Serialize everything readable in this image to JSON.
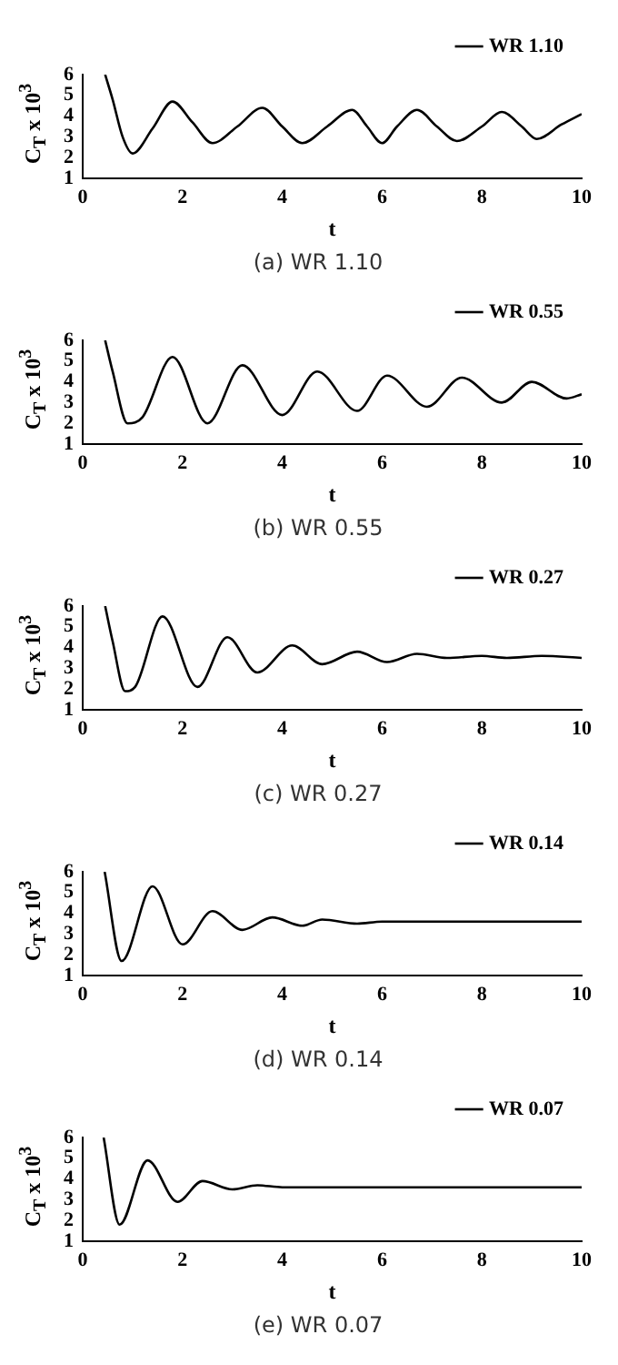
{
  "chart_data": [
    {
      "type": "line",
      "title": "(a) WR 1.10",
      "xlabel": "t",
      "ylabel": "C$_{T}$ x 10$^{3}$",
      "xlim": [
        0,
        10
      ],
      "xticks": [
        0,
        2,
        4,
        6,
        8,
        10
      ],
      "ylim": [
        1,
        6
      ],
      "yticks": [
        1,
        2,
        3,
        4,
        5,
        6
      ],
      "legend": "top right",
      "series": [
        {
          "name": "WR 1.10",
          "color": "#000000",
          "x": [
            0.45,
            0.6,
            0.8,
            1.0,
            1.4,
            1.8,
            2.2,
            2.6,
            3.1,
            3.6,
            4.0,
            4.4,
            4.9,
            5.4,
            5.7,
            6.0,
            6.3,
            6.7,
            7.1,
            7.5,
            8.0,
            8.4,
            8.8,
            9.1,
            9.6,
            10
          ],
          "values": [
            6,
            4.8,
            3.0,
            2.2,
            3.4,
            4.7,
            3.7,
            2.7,
            3.5,
            4.4,
            3.5,
            2.7,
            3.5,
            4.3,
            3.5,
            2.7,
            3.5,
            4.3,
            3.5,
            2.8,
            3.5,
            4.2,
            3.5,
            2.9,
            3.6,
            4.1
          ]
        }
      ]
    },
    {
      "type": "line",
      "title": "(b) WR 0.55",
      "xlabel": "t",
      "ylabel": "C$_{T}$ x 10$^{3}$",
      "xlim": [
        0,
        10
      ],
      "xticks": [
        0,
        2,
        4,
        6,
        8,
        10
      ],
      "ylim": [
        1,
        6
      ],
      "yticks": [
        1,
        2,
        3,
        4,
        5,
        6
      ],
      "legend": "top right",
      "series": [
        {
          "name": "WR 0.55",
          "color": "#000000",
          "x": [
            0.45,
            0.6,
            0.9,
            1.2,
            1.8,
            2.5,
            3.2,
            4.0,
            4.7,
            5.5,
            6.1,
            6.9,
            7.6,
            8.4,
            9.0,
            9.7,
            10
          ],
          "values": [
            6,
            4.5,
            2.0,
            2.3,
            5.2,
            2.0,
            4.8,
            2.4,
            4.5,
            2.6,
            4.3,
            2.8,
            4.2,
            3.0,
            4.0,
            3.2,
            3.4
          ]
        }
      ]
    },
    {
      "type": "line",
      "title": "(c) WR 0.27",
      "xlabel": "t",
      "ylabel": "C$_{T}$ x 10$^{3}$",
      "xlim": [
        0,
        10
      ],
      "xticks": [
        0,
        2,
        4,
        6,
        8,
        10
      ],
      "ylim": [
        1,
        6
      ],
      "yticks": [
        1,
        2,
        3,
        4,
        5,
        6
      ],
      "legend": "top right",
      "series": [
        {
          "name": "WR 0.27",
          "color": "#000000",
          "x": [
            0.45,
            0.6,
            0.85,
            1.05,
            1.6,
            2.3,
            2.9,
            3.5,
            4.2,
            4.8,
            5.5,
            6.1,
            6.7,
            7.3,
            8.0,
            8.5,
            9.2,
            10
          ],
          "values": [
            6,
            4.3,
            1.9,
            2.1,
            5.5,
            2.1,
            4.5,
            2.8,
            4.1,
            3.2,
            3.8,
            3.3,
            3.7,
            3.5,
            3.6,
            3.5,
            3.6,
            3.5
          ]
        }
      ]
    },
    {
      "type": "line",
      "title": "(d) WR 0.14",
      "xlabel": "t",
      "ylabel": "C$_{T}$ x 10$^{3}$",
      "xlim": [
        0,
        10
      ],
      "xticks": [
        0,
        2,
        4,
        6,
        8,
        10
      ],
      "ylim": [
        1,
        6
      ],
      "yticks": [
        1,
        2,
        3,
        4,
        5,
        6
      ],
      "legend": "top right",
      "series": [
        {
          "name": "WR 0.14",
          "color": "#000000",
          "x": [
            0.44,
            0.78,
            1.4,
            2.0,
            2.6,
            3.2,
            3.8,
            4.4,
            4.8,
            5.5,
            6.0,
            7,
            8,
            9,
            10
          ],
          "values": [
            6,
            1.7,
            5.3,
            2.5,
            4.1,
            3.2,
            3.8,
            3.4,
            3.7,
            3.5,
            3.6,
            3.6,
            3.6,
            3.6,
            3.6
          ]
        }
      ]
    },
    {
      "type": "line",
      "title": "(e) WR 0.07",
      "xlabel": "t",
      "ylabel": "C$_{T}$ x 10$^{3}$",
      "xlim": [
        0,
        10
      ],
      "xticks": [
        0,
        2,
        4,
        6,
        8,
        10
      ],
      "ylim": [
        1,
        6
      ],
      "yticks": [
        1,
        2,
        3,
        4,
        5,
        6
      ],
      "legend": "top right",
      "series": [
        {
          "name": "WR 0.07",
          "color": "#000000",
          "x": [
            0.42,
            0.74,
            1.3,
            1.9,
            2.4,
            3.0,
            3.5,
            4.0,
            4.4,
            5,
            6,
            7,
            8,
            9,
            10
          ],
          "values": [
            6,
            1.8,
            4.9,
            2.9,
            3.9,
            3.5,
            3.7,
            3.6,
            3.6,
            3.6,
            3.6,
            3.6,
            3.6,
            3.6,
            3.6
          ]
        }
      ]
    }
  ]
}
